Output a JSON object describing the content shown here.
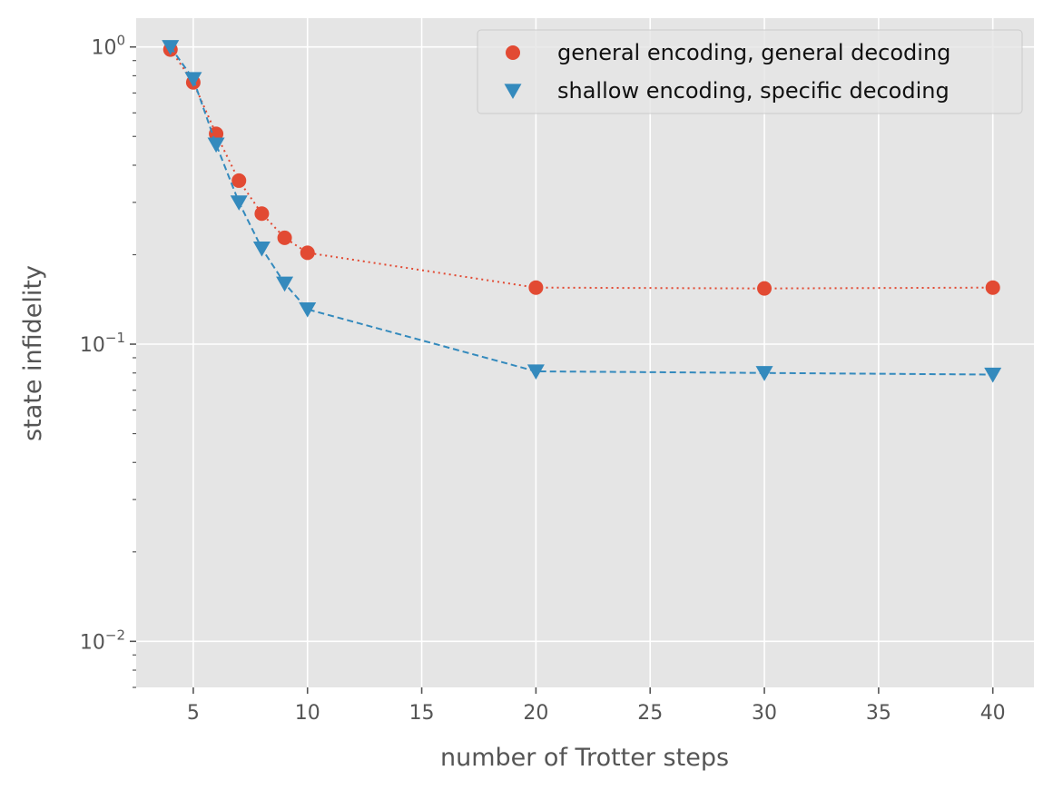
{
  "chart_data": {
    "type": "scatter",
    "xlabel": "number of Trotter steps",
    "ylabel": "state infidelity",
    "xlim": [
      2.5,
      41.8
    ],
    "ylim": [
      0.007,
      1.25
    ],
    "yscale": "log",
    "grid": true,
    "legend_position": "top-right",
    "x_ticks": [
      5,
      10,
      15,
      20,
      25,
      30,
      35,
      40
    ],
    "y_ticks": [
      {
        "value": 1,
        "base": "10",
        "exp": "0"
      },
      {
        "value": 0.1,
        "base": "10",
        "exp": "−1"
      },
      {
        "value": 0.01,
        "base": "10",
        "exp": "−2"
      }
    ],
    "series": [
      {
        "name": "general encoding, general decoding",
        "color": "#E24A33",
        "marker": "circle",
        "line_style": "dotted",
        "x": [
          4,
          5,
          6,
          7,
          8,
          9,
          10,
          20,
          30,
          40
        ],
        "y": [
          0.98,
          0.76,
          0.51,
          0.355,
          0.275,
          0.228,
          0.203,
          0.155,
          0.154,
          0.155
        ]
      },
      {
        "name": "shallow encoding, specific decoding",
        "color": "#348ABD",
        "marker": "triangle-down",
        "line_style": "dashed",
        "x": [
          4,
          5,
          6,
          7,
          8,
          9,
          10,
          20,
          30,
          40
        ],
        "y": [
          1.0,
          0.78,
          0.47,
          0.3,
          0.21,
          0.16,
          0.131,
          0.081,
          0.08,
          0.079
        ]
      }
    ]
  }
}
